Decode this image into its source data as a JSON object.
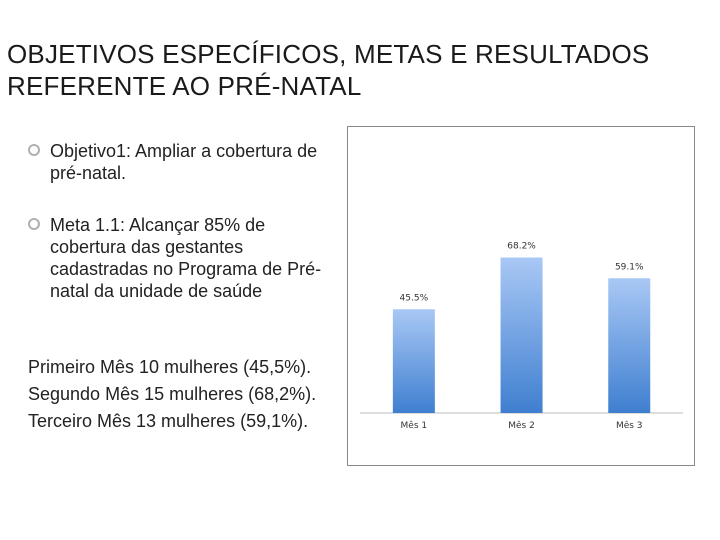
{
  "title": {
    "line1": "OBJETIVOS ESPECÍFICOS, METAS E RESULTADOS",
    "line2": "REFERENTE AO PRÉ-NATAL"
  },
  "bullets": [
    "Objetivo1: Ampliar a cobertura de pré-natal.",
    "Meta 1.1: Alcançar 85% de cobertura das gestantes cadastradas no Programa de Pré-natal da unidade de saúde"
  ],
  "results": [
    "Primeiro Mês 10 mulheres (45,5%).",
    "Segundo Mês 15 mulheres (68,2%).",
    "Terceiro Mês 13 mulheres (59,1%)."
  ],
  "chart_data": {
    "type": "bar",
    "categories": [
      "Mês 1",
      "Mês 2",
      "Mês 3"
    ],
    "values": [
      45.5,
      68.2,
      59.1
    ],
    "data_labels": [
      "45.5%",
      "68.2%",
      "59.1%"
    ],
    "ylim": [
      0,
      100
    ],
    "grid": false,
    "legend": "none",
    "bar_color_top": "#a9c8f5",
    "bar_color_bottom": "#3f7fd0"
  }
}
